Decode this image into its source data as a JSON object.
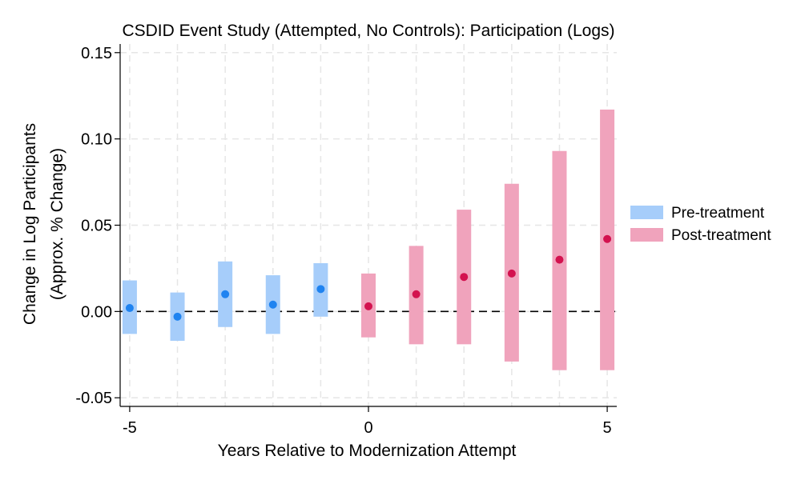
{
  "chart_data": {
    "type": "scatter",
    "title": "CSDID Event Study (Attempted, No Controls): Participation (Logs)",
    "xlabel": "Years Relative to Modernization Attempt",
    "ylabel_line1": "Change in Log Participants",
    "ylabel_line2": "(Approx. % Change)",
    "xlim": [
      -5.2,
      5.2
    ],
    "ylim": [
      -0.055,
      0.155
    ],
    "x_ticks": [
      -5,
      0,
      5
    ],
    "x_tick_labels": [
      "-5",
      "0",
      "5"
    ],
    "y_ticks": [
      -0.05,
      0.0,
      0.05,
      0.1,
      0.15
    ],
    "y_tick_labels": [
      "-0.05",
      "0.00",
      "0.05",
      "0.10",
      "0.15"
    ],
    "x_grid": [
      -5,
      -4,
      -3,
      -2,
      -1,
      0,
      1,
      2,
      3,
      4,
      5
    ],
    "grid": true,
    "reference_line_y": 0,
    "legend_position": "right",
    "series": [
      {
        "name": "Pre-treatment",
        "bar_color": "#a6cdfa",
        "point_color": "#1f83f0",
        "points": [
          {
            "x": -5,
            "y": 0.002,
            "lo": -0.013,
            "hi": 0.018
          },
          {
            "x": -4,
            "y": -0.003,
            "lo": -0.017,
            "hi": 0.011
          },
          {
            "x": -3,
            "y": 0.01,
            "lo": -0.009,
            "hi": 0.029
          },
          {
            "x": -2,
            "y": 0.004,
            "lo": -0.013,
            "hi": 0.021
          },
          {
            "x": -1,
            "y": 0.013,
            "lo": -0.003,
            "hi": 0.028
          }
        ]
      },
      {
        "name": "Post-treatment",
        "bar_color": "#f0a3bc",
        "point_color": "#d3124f",
        "points": [
          {
            "x": 0,
            "y": 0.003,
            "lo": -0.015,
            "hi": 0.022
          },
          {
            "x": 1,
            "y": 0.01,
            "lo": -0.019,
            "hi": 0.038
          },
          {
            "x": 2,
            "y": 0.02,
            "lo": -0.019,
            "hi": 0.059
          },
          {
            "x": 3,
            "y": 0.022,
            "lo": -0.029,
            "hi": 0.074
          },
          {
            "x": 4,
            "y": 0.03,
            "lo": -0.034,
            "hi": 0.093
          },
          {
            "x": 5,
            "y": 0.042,
            "lo": -0.034,
            "hi": 0.117
          }
        ]
      }
    ]
  }
}
